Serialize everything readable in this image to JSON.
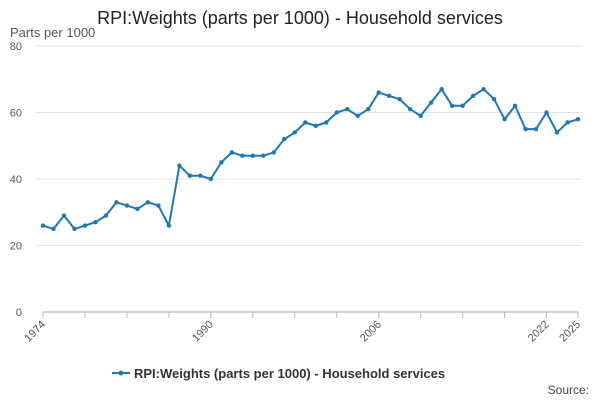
{
  "chart_data": {
    "type": "line",
    "title": "RPI:Weights (parts per 1000) - Household services",
    "ylabel": "Parts per 1000",
    "xlabel": "",
    "ylim": [
      0,
      80
    ],
    "yticks": [
      0,
      20,
      40,
      60,
      80
    ],
    "xticks": [
      "1974",
      "1990",
      "2006",
      "2022",
      "2025"
    ],
    "grid": true,
    "legend_position": "bottom",
    "color": "#1f77b4",
    "series": [
      {
        "name": "RPI:Weights (parts per 1000) - Household services",
        "x": [
          1974,
          1975,
          1976,
          1977,
          1978,
          1979,
          1980,
          1981,
          1982,
          1983,
          1984,
          1985,
          1986,
          1987,
          1988,
          1989,
          1990,
          1991,
          1992,
          1993,
          1994,
          1995,
          1996,
          1997,
          1998,
          1999,
          2000,
          2001,
          2002,
          2003,
          2004,
          2005,
          2006,
          2007,
          2008,
          2009,
          2010,
          2011,
          2012,
          2013,
          2014,
          2015,
          2016,
          2017,
          2018,
          2019,
          2020,
          2021,
          2022,
          2023,
          2024,
          2025
        ],
        "values": [
          26,
          25,
          29,
          25,
          26,
          27,
          29,
          33,
          32,
          31,
          33,
          32,
          26,
          44,
          41,
          41,
          40,
          45,
          48,
          47,
          47,
          47,
          48,
          52,
          54,
          57,
          56,
          57,
          60,
          61,
          59,
          61,
          66,
          65,
          64,
          61,
          59,
          63,
          67,
          62,
          62,
          65,
          67,
          64,
          58,
          62,
          55,
          55,
          60,
          54,
          57,
          58
        ]
      }
    ]
  },
  "source_label": "Source:"
}
